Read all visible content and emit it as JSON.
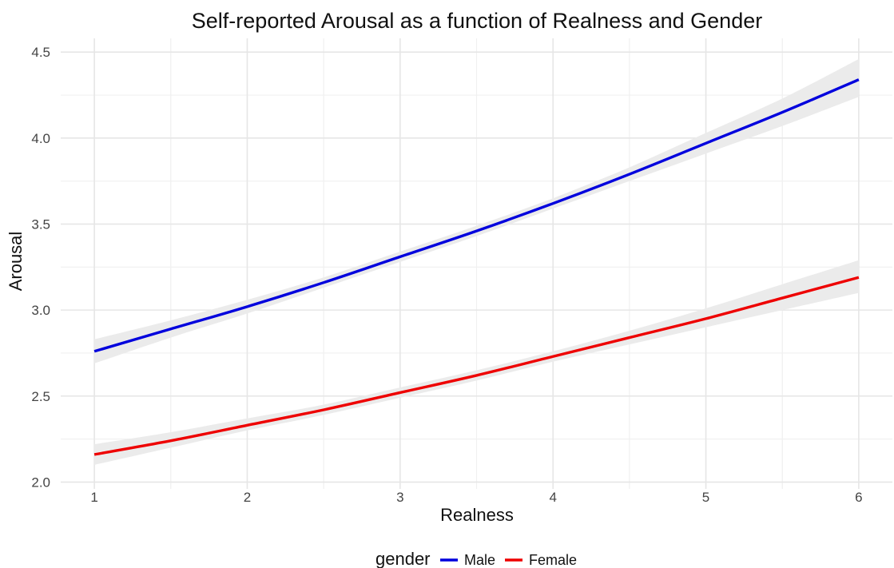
{
  "chart_data": {
    "type": "line",
    "title": "Self-reported Arousal as a function of Realness and Gender",
    "xlabel": "Realness",
    "ylabel": "Arousal",
    "xlim": [
      0.78,
      6.22
    ],
    "ylim": [
      1.96,
      4.58
    ],
    "x_ticks": [
      1,
      2,
      3,
      4,
      5,
      6
    ],
    "x_tick_labels": [
      "1",
      "2",
      "3",
      "4",
      "5",
      "6"
    ],
    "y_ticks": [
      2.0,
      2.5,
      3.0,
      3.5,
      4.0,
      4.5
    ],
    "y_tick_labels": [
      "2.0",
      "2.5",
      "3.0",
      "3.5",
      "4.0",
      "4.5"
    ],
    "grid": true,
    "legend": {
      "title": "gender",
      "position": "bottom",
      "entries": [
        "Male",
        "Female"
      ]
    },
    "series": [
      {
        "name": "Male",
        "color": "#0000dd",
        "x": [
          1,
          1.5,
          2,
          2.5,
          3,
          3.5,
          4,
          4.5,
          5,
          5.5,
          6
        ],
        "y": [
          2.76,
          2.89,
          3.02,
          3.16,
          3.31,
          3.46,
          3.62,
          3.79,
          3.97,
          4.15,
          4.34
        ],
        "ci_lower": [
          2.69,
          2.84,
          2.98,
          3.13,
          3.28,
          3.43,
          3.59,
          3.75,
          3.91,
          4.07,
          4.24
        ],
        "ci_upper": [
          2.83,
          2.94,
          3.06,
          3.19,
          3.34,
          3.49,
          3.65,
          3.83,
          4.03,
          4.23,
          4.46
        ]
      },
      {
        "name": "Female",
        "color": "#ee0000",
        "x": [
          1,
          1.5,
          2,
          2.5,
          3,
          3.5,
          4,
          4.5,
          5,
          5.5,
          6
        ],
        "y": [
          2.16,
          2.24,
          2.33,
          2.42,
          2.52,
          2.62,
          2.73,
          2.84,
          2.95,
          3.07,
          3.19
        ],
        "ci_lower": [
          2.1,
          2.2,
          2.3,
          2.39,
          2.49,
          2.59,
          2.7,
          2.8,
          2.9,
          3.0,
          3.1
        ],
        "ci_upper": [
          2.22,
          2.29,
          2.37,
          2.45,
          2.55,
          2.65,
          2.76,
          2.88,
          3.01,
          3.15,
          3.29
        ]
      }
    ],
    "ribbon_color": "#ebebeb"
  }
}
